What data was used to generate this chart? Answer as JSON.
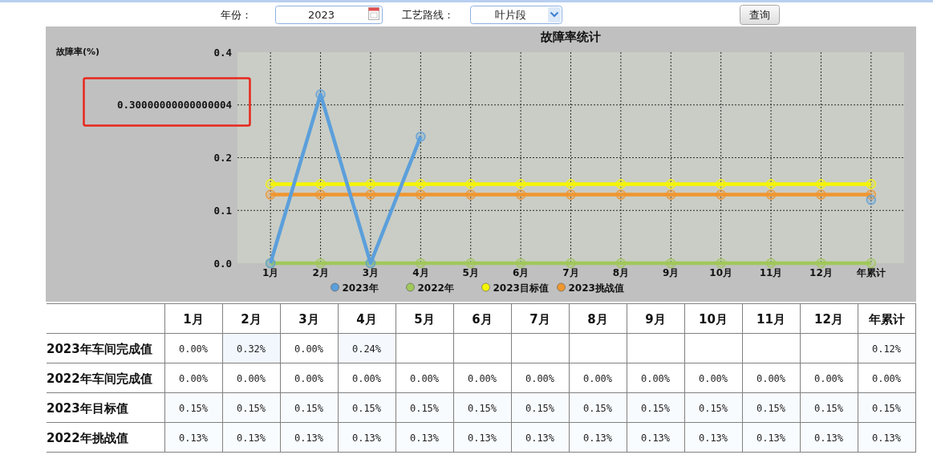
{
  "chart_data": [
    {
      "type": "line",
      "title": "故障率统计",
      "ylabel": "故障率(%)",
      "categories": [
        "1月",
        "2月",
        "3月",
        "4月",
        "5月",
        "6月",
        "7月",
        "8月",
        "9月",
        "10月",
        "11月",
        "12月",
        "年累计"
      ],
      "ylim": [
        0,
        0.4
      ],
      "yticks": [
        {
          "value": 0,
          "label": "0.0"
        },
        0.1,
        0.2,
        {
          "value": 0.3,
          "label": "0.30000000000000004"
        },
        0.4
      ],
      "grid": true,
      "legend": "bottom",
      "marker": "circle",
      "line_style": "solid",
      "series": [
        {
          "name": "2023年",
          "color": "#5b9fdb",
          "values": [
            0,
            0.32,
            0,
            0.24,
            null,
            null,
            null,
            null,
            null,
            null,
            null,
            null,
            0.12
          ]
        },
        {
          "name": "2022年",
          "color": "#a0c85a",
          "values": [
            0,
            0,
            0,
            0,
            0,
            0,
            0,
            0,
            0,
            0,
            0,
            0,
            0
          ]
        },
        {
          "name": "2023目标值",
          "color": "#f5f500",
          "values": [
            0.15,
            0.15,
            0.15,
            0.15,
            0.15,
            0.15,
            0.15,
            0.15,
            0.15,
            0.15,
            0.15,
            0.15,
            0.15
          ]
        },
        {
          "name": "2023挑战值",
          "color": "#f0962f",
          "values": [
            0.13,
            0.13,
            0.13,
            0.13,
            0.13,
            0.13,
            0.13,
            0.13,
            0.13,
            0.13,
            0.13,
            0.13,
            0.13
          ]
        }
      ],
      "annotations": [
        "年份：",
        "2023",
        "工艺路线：",
        "叶片段",
        "查询"
      ]
    },
    {
      "type": "heatmap",
      "categories": [
        "1月",
        "2月",
        "3月",
        "4月",
        "5月",
        "6月",
        "7月",
        "8月",
        "9月",
        "10月",
        "11月",
        "12月",
        "年累计"
      ],
      "y_categories": [
        "2023年车间完成值",
        "2022年车间完成值",
        "2023年目标值",
        "2022年挑战值"
      ],
      "cells": [
        [
          0,
          0.32,
          0,
          0.24,
          null,
          null,
          null,
          null,
          null,
          null,
          null,
          null,
          0.12
        ],
        [
          0,
          0,
          0,
          0,
          0,
          0,
          0,
          0,
          0,
          0,
          0,
          0,
          0
        ],
        [
          0.15,
          0.15,
          0.15,
          0.15,
          0.15,
          0.15,
          0.15,
          0.15,
          0.15,
          0.15,
          0.15,
          0.15,
          0.15
        ],
        [
          0.13,
          0.13,
          0.13,
          0.13,
          0.13,
          0.13,
          0.13,
          0.13,
          0.13,
          0.13,
          0.13,
          0.13,
          0.13
        ]
      ],
      "cell_labels": [
        [
          "0.00%",
          "0.32%",
          "0.00%",
          "0.24%",
          null,
          null,
          null,
          null,
          null,
          null,
          null,
          null,
          "0.12%"
        ],
        [
          "0.00%",
          "0.00%",
          "0.00%",
          "0.00%",
          "0.00%",
          "0.00%",
          "0.00%",
          "0.00%",
          "0.00%",
          "0.00%",
          "0.00%",
          "0.00%",
          "0.00%"
        ],
        [
          "0.15%",
          "0.15%",
          "0.15%",
          "0.15%",
          "0.15%",
          "0.15%",
          "0.15%",
          "0.15%",
          "0.15%",
          "0.15%",
          "0.15%",
          "0.15%",
          "0.15%"
        ],
        [
          "0.13%",
          "0.13%",
          "0.13%",
          "0.13%",
          "0.13%",
          "0.13%",
          "0.13%",
          "0.13%",
          "0.13%",
          "0.13%",
          "0.13%",
          "0.13%",
          "0.13%"
        ]
      ]
    }
  ]
}
